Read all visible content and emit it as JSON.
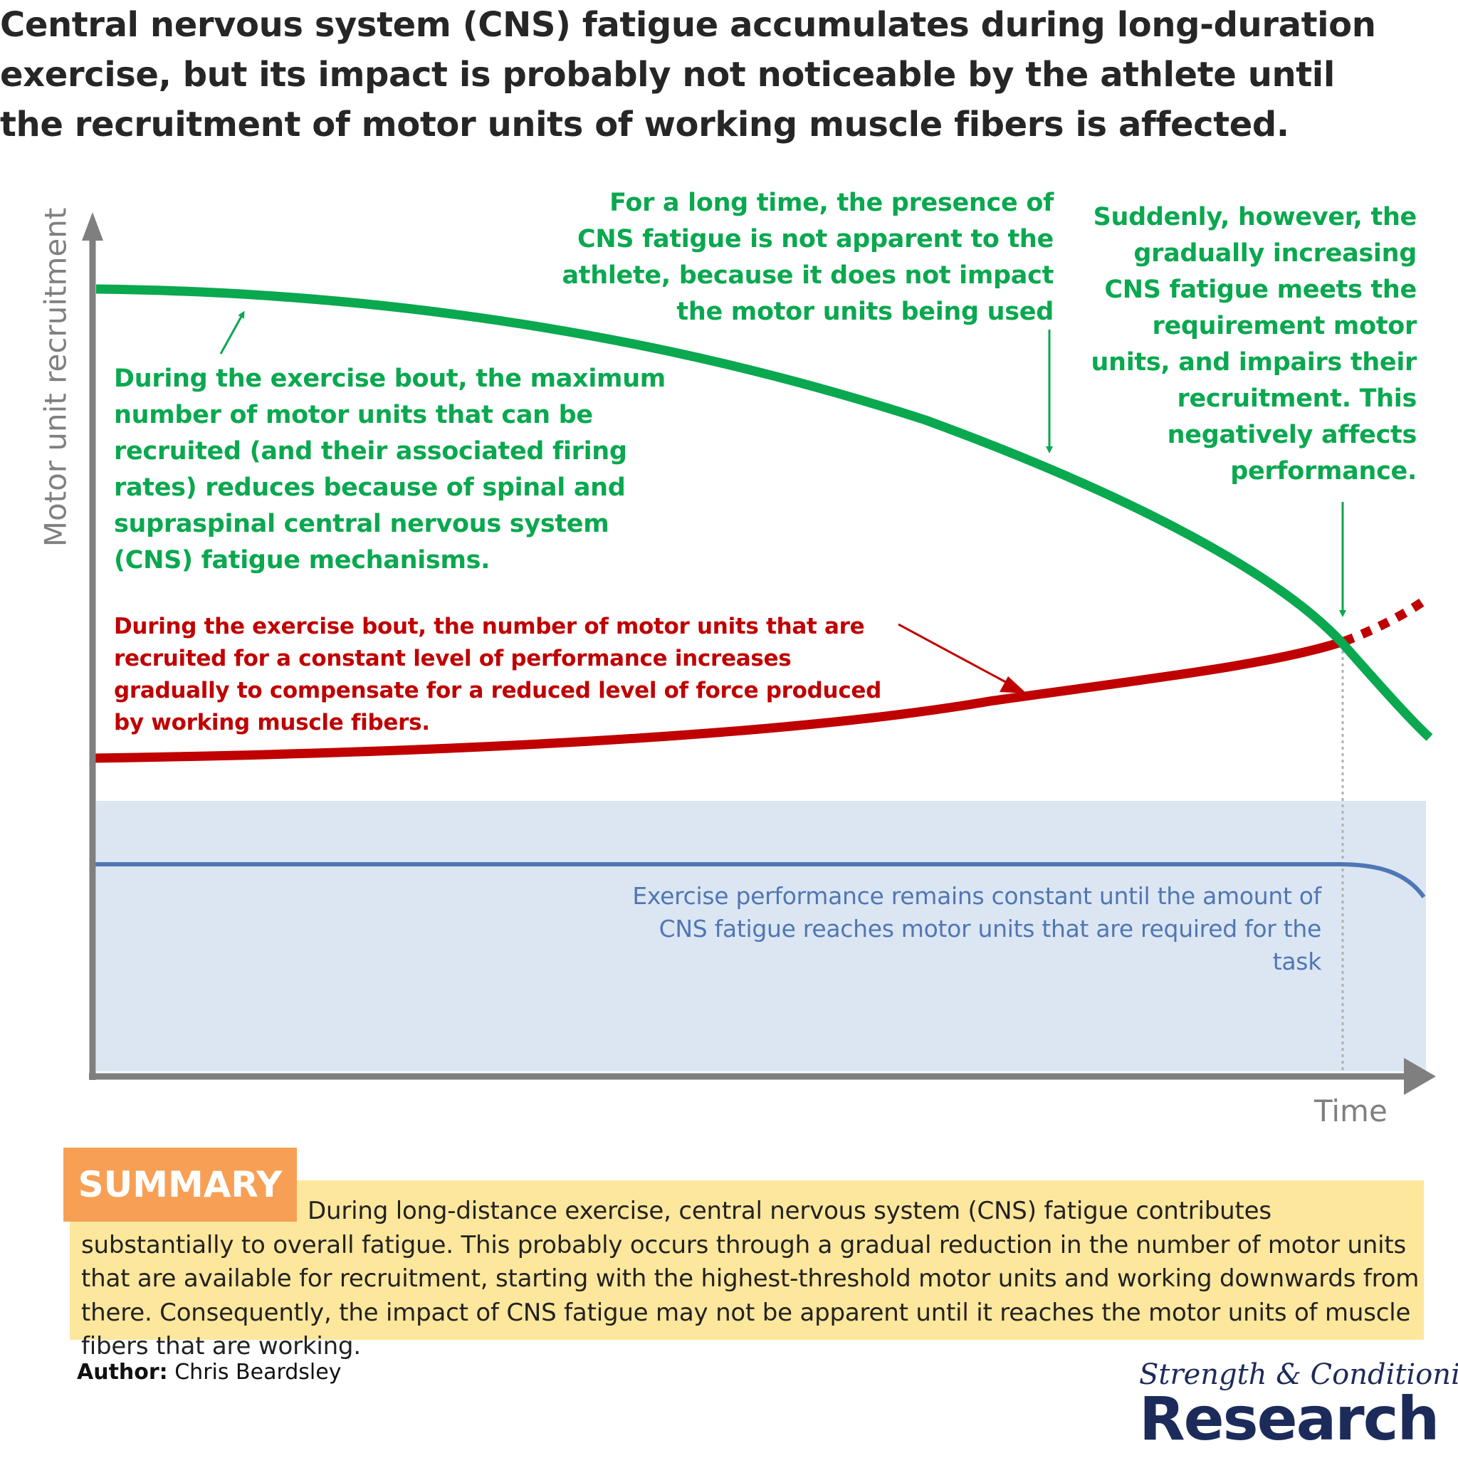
{
  "headline": "Central nervous system (CNS) fatigue accumulates during long-duration exercise, but its impact is probably not noticeable by the athlete until the recruitment of motor units of working muscle fibers is affected.",
  "axes": {
    "ylabel": "Motor unit recruitment",
    "xlabel": "Time"
  },
  "annotations": {
    "max_recruitment": "During the exercise bout, the maximum number of motor units that can be recruited (and their associated firing rates) reduces because of spinal and supraspinal central nervous system (CNS) fatigue mechanisms.",
    "not_apparent": "For a long time, the presence of CNS fatigue is not apparent to the athlete, because it does not impact the motor units being used",
    "suddenly": "Suddenly, however, the gradually increasing CNS fatigue meets the requirement motor units, and impairs their recruitment. This negatively affects performance.",
    "recruited": "During the exercise bout, the number of motor units that are recruited for a constant level of performance increases gradually to compensate for a reduced level of force produced by working muscle fibers.",
    "performance": "Exercise performance remains constant until the amount of CNS fatigue reaches motor units that are required for the task"
  },
  "summary": {
    "tag": "SUMMARY",
    "text": "During long-distance exercise, central nervous system (CNS) fatigue contributes substantially to overall fatigue. This probably occurs through a gradual reduction in the number of motor units that are available for recruitment, starting with the highest-threshold motor units and working downwards from there. Consequently, the impact of CNS fatigue may not be apparent until it reaches the motor units of muscle fibers that are working."
  },
  "author": {
    "label": "Author:",
    "name": "Chris Beardsley"
  },
  "brand": {
    "line1": "Strength & Conditioning",
    "line2": "Research"
  },
  "colors": {
    "max_line": "#0aa84f",
    "recruited_line": "#c00000",
    "performance_line": "#4f77b5",
    "performance_band": "#dce6f2",
    "axis": "#7f7f7f",
    "summary_tag": "#f7a055",
    "summary_box": "#fde79c",
    "brand": "#1c2b5a"
  }
}
